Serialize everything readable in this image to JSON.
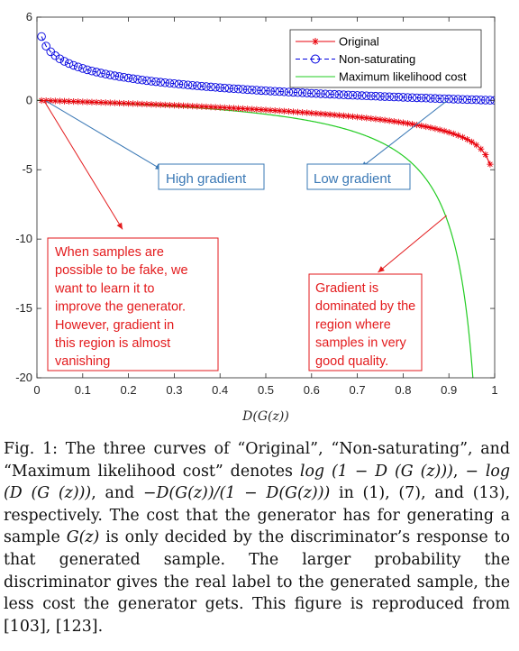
{
  "chart_data": {
    "type": "line",
    "title": "",
    "xlabel": "D(G(z))",
    "ylabel": "",
    "xlim": [
      0,
      1
    ],
    "ylim": [
      -20,
      6
    ],
    "x_ticks": [
      "0",
      "0.1",
      "0.2",
      "0.3",
      "0.4",
      "0.5",
      "0.6",
      "0.7",
      "0.8",
      "0.9",
      "1"
    ],
    "y_ticks": [
      "6",
      "0",
      "-5",
      "-10",
      "-15",
      "-20"
    ],
    "grid": false,
    "legend_position": "top-right",
    "series": [
      {
        "name": "Original",
        "formula": "log(1-x)",
        "color": "#e8000b",
        "marker": "asterisk"
      },
      {
        "name": "Non-saturating",
        "formula": "-log(x)",
        "color": "#0000e0",
        "marker": "circle",
        "linestyle": "dashed"
      },
      {
        "name": "Maximum likelihood cost",
        "formula": "-x/(1-x)",
        "color": "#22cc22",
        "marker": "none"
      }
    ],
    "annotations": [
      {
        "id": "high",
        "text": [
          "High gradient"
        ],
        "color": "#3a78b5"
      },
      {
        "id": "low",
        "text": [
          "Low gradient"
        ],
        "color": "#3a78b5"
      },
      {
        "id": "fake",
        "text": [
          "When samples are",
          "possible to be fake, we",
          "want to learn it to",
          "improve the generator.",
          "However, gradient in",
          "this region is almost",
          "vanishing"
        ],
        "color": "#e31a1c"
      },
      {
        "id": "dominated",
        "text": [
          "Gradient is",
          "dominated by the",
          "region where",
          "samples in very",
          "good quality."
        ],
        "color": "#e31a1c"
      }
    ]
  },
  "caption": {
    "segments": [
      {
        "t": "text",
        "v": "Fig. 1: The three curves of “Original”, “Non-saturating”, and “Maximum likelihood cost” denotes "
      },
      {
        "t": "math",
        "v": "log (1 − D (G (z)))"
      },
      {
        "t": "text",
        "v": ", "
      },
      {
        "t": "math",
        "v": "− log (D (G (z)))"
      },
      {
        "t": "text",
        "v": ", and "
      },
      {
        "t": "math",
        "v": "−D(G(z))/(1 − D(G(z)))"
      },
      {
        "t": "text",
        "v": " in (1), (7), and (13), respectively. The cost that the generator has for generating a sample "
      },
      {
        "t": "math",
        "v": "G(z)"
      },
      {
        "t": "text",
        "v": " is only decided by the discriminator’s response to that generated sample. The larger probability the discriminator gives the real label to the generated sample, the less cost the generator gets. This figure is reproduced from [103], [123]."
      }
    ]
  }
}
